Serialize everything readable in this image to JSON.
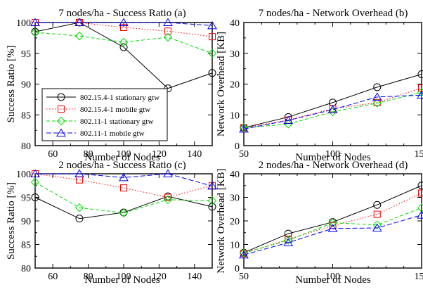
{
  "colors": {
    "s1": "#000000",
    "s2": "#ff0000",
    "s3": "#00dd00",
    "s4": "#0000ff"
  },
  "chart_data": [
    {
      "type": "line",
      "title": "7 nodes/ha - Success Ratio (a)",
      "xlabel": "Number of Nodes",
      "ylabel": "Success Ratio [%]",
      "xlim": [
        50,
        150
      ],
      "ylim": [
        80,
        100
      ],
      "xticks": [
        60,
        80,
        100,
        120,
        140
      ],
      "yticks": [
        80,
        85,
        90,
        95,
        100
      ],
      "legend": {
        "position": "bottom-left",
        "entries": [
          "802.15.4-1 stationary gtw",
          "802.15.4-1 mobile gtw",
          "802.11-1 stationary gtw",
          "802.11-1 mobile gtw"
        ]
      },
      "x": [
        50,
        75,
        100,
        125,
        150
      ],
      "series": [
        {
          "name": "802.15.4-1 stationary gtw",
          "values": [
            98.5,
            100,
            96,
            89.3,
            91.8
          ]
        },
        {
          "name": "802.15.4-1 mobile gtw",
          "values": [
            100,
            100,
            99.2,
            98.6,
            97.7
          ]
        },
        {
          "name": "802.11-1 stationary gtw",
          "values": [
            98.4,
            97.8,
            96.8,
            97.6,
            95
          ]
        },
        {
          "name": "802.11-1 mobile gtw",
          "values": [
            100,
            100,
            100,
            100,
            99.5
          ]
        }
      ]
    },
    {
      "type": "line",
      "title": "7 nodes/ha - Network Overhead (b)",
      "xlabel": "Number of Nodes",
      "ylabel": "Network Overhead [KB]",
      "xlim": [
        50,
        150
      ],
      "ylim": [
        0,
        40
      ],
      "xticks": [
        50,
        60,
        70,
        80,
        90,
        100,
        110,
        120,
        130,
        140,
        150
      ],
      "xticklabels": [
        "50",
        "",
        "",
        "",
        "",
        "100",
        "",
        "",
        "",
        "",
        "150"
      ],
      "yticks": [
        0,
        10,
        20,
        30,
        40
      ],
      "x": [
        50,
        75,
        100,
        125,
        150
      ],
      "series": [
        {
          "name": "802.15.4-1 stationary gtw",
          "values": [
            5.8,
            9.3,
            14,
            19,
            23.2
          ]
        },
        {
          "name": "802.15.4-1 mobile gtw",
          "values": [
            5.8,
            8.3,
            12,
            14,
            18.7
          ]
        },
        {
          "name": "802.11-1 stationary gtw",
          "values": [
            5.8,
            7,
            11,
            13.8,
            17.3
          ]
        },
        {
          "name": "802.11-1 mobile gtw",
          "values": [
            5.4,
            8.2,
            11.7,
            15.8,
            16.4
          ]
        }
      ]
    },
    {
      "type": "line",
      "title": "2 nodes/ha - Success Ratio (c)",
      "xlabel": "Number of Nodes",
      "ylabel": "Success Ratio [%]",
      "xlim": [
        50,
        150
      ],
      "ylim": [
        80,
        100
      ],
      "xticks": [
        60,
        80,
        100,
        120,
        140
      ],
      "yticks": [
        80,
        85,
        90,
        95,
        100
      ],
      "x": [
        50,
        75,
        100,
        125,
        150
      ],
      "series": [
        {
          "name": "802.15.4-1 stationary gtw",
          "values": [
            95,
            90.5,
            91.8,
            95.2,
            93
          ]
        },
        {
          "name": "802.15.4-1 mobile gtw",
          "values": [
            100,
            98.7,
            97,
            95,
            97.5
          ]
        },
        {
          "name": "802.11-1 stationary gtw",
          "values": [
            98.2,
            92.8,
            91.7,
            94.5,
            94.3
          ]
        },
        {
          "name": "802.11-1 mobile gtw",
          "values": [
            100,
            100,
            99.2,
            100,
            97.4
          ]
        }
      ]
    },
    {
      "type": "line",
      "title": "2 nodes/ha - Network Overhead (d)",
      "xlabel": "Number of Nodes",
      "ylabel": "Network Overhead [KB]",
      "xlim": [
        50,
        150
      ],
      "ylim": [
        0,
        40
      ],
      "xticks": [
        50,
        60,
        70,
        80,
        90,
        100,
        110,
        120,
        130,
        140,
        150
      ],
      "xticklabels": [
        "50",
        "",
        "",
        "",
        "",
        "100",
        "",
        "",
        "",
        "",
        "150"
      ],
      "yticks": [
        0,
        10,
        20,
        30,
        40
      ],
      "x": [
        50,
        75,
        100,
        125,
        150
      ],
      "series": [
        {
          "name": "802.15.4-1 stationary gtw",
          "values": [
            6.5,
            14.6,
            19.5,
            26.8,
            35
          ]
        },
        {
          "name": "802.15.4-1 mobile gtw",
          "values": [
            6.2,
            12.2,
            18,
            22.8,
            31.8
          ]
        },
        {
          "name": "802.11-1 stationary gtw",
          "values": [
            6.4,
            11.8,
            19.2,
            18.3,
            25.5
          ]
        },
        {
          "name": "802.11-1 mobile gtw",
          "values": [
            5.6,
            10.8,
            16.8,
            17,
            22.5
          ]
        }
      ]
    }
  ]
}
